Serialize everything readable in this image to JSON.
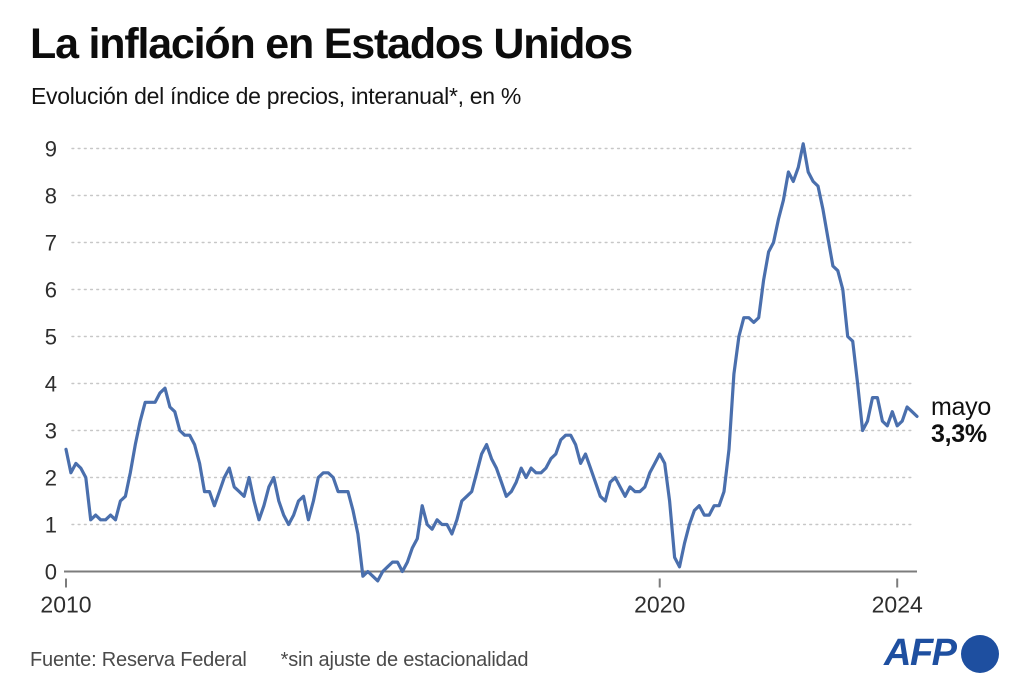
{
  "header": {
    "title": "La inflación en Estados Unidos",
    "subtitle": "Evolución del índice de precios, interanual*, en %"
  },
  "footer": {
    "source": "Fuente: Reserva Federal",
    "note": "*sin ajuste de estacionalidad"
  },
  "logo": {
    "text": "AFP"
  },
  "chart_data": {
    "type": "line",
    "title": "La inflación en Estados Unidos",
    "subtitle": "Evolución del índice de precios, interanual*, en %",
    "unit": "%",
    "x_range": {
      "start": "2010-01",
      "end": "2024-05"
    },
    "x_ticks": [
      "2010",
      "2020",
      "2024"
    ],
    "y_ticks": [
      0,
      1,
      2,
      3,
      4,
      5,
      6,
      7,
      8,
      9
    ],
    "ylim": [
      -0.3,
      9.4
    ],
    "grid": "dotted-horizontal",
    "line_color": "#4a6fad",
    "annotation": {
      "label": "mayo",
      "value": "3,3%"
    },
    "series": [
      {
        "name": "Índice de precios, variación interanual (%)",
        "frequency": "monthly",
        "values_by_year": {
          "2010": [
            2.6,
            2.1,
            2.3,
            2.2,
            2.0,
            1.1,
            1.2,
            1.1,
            1.1,
            1.2,
            1.1,
            1.5
          ],
          "2011": [
            1.6,
            2.1,
            2.7,
            3.2,
            3.6,
            3.6,
            3.6,
            3.8,
            3.9,
            3.5,
            3.4,
            3.0
          ],
          "2012": [
            2.9,
            2.9,
            2.7,
            2.3,
            1.7,
            1.7,
            1.4,
            1.7,
            2.0,
            2.2,
            1.8,
            1.7
          ],
          "2013": [
            1.6,
            2.0,
            1.5,
            1.1,
            1.4,
            1.8,
            2.0,
            1.5,
            1.2,
            1.0,
            1.2,
            1.5
          ],
          "2014": [
            1.6,
            1.1,
            1.5,
            2.0,
            2.1,
            2.1,
            2.0,
            1.7,
            1.7,
            1.7,
            1.3,
            0.8
          ],
          "2015": [
            -0.1,
            0.0,
            -0.1,
            -0.2,
            0.0,
            0.1,
            0.2,
            0.2,
            0.0,
            0.2,
            0.5,
            0.7
          ],
          "2016": [
            1.4,
            1.0,
            0.9,
            1.1,
            1.0,
            1.0,
            0.8,
            1.1,
            1.5,
            1.6,
            1.7,
            2.1
          ],
          "2017": [
            2.5,
            2.7,
            2.4,
            2.2,
            1.9,
            1.6,
            1.7,
            1.9,
            2.2,
            2.0,
            2.2,
            2.1
          ],
          "2018": [
            2.1,
            2.2,
            2.4,
            2.5,
            2.8,
            2.9,
            2.9,
            2.7,
            2.3,
            2.5,
            2.2,
            1.9
          ],
          "2019": [
            1.6,
            1.5,
            1.9,
            2.0,
            1.8,
            1.6,
            1.8,
            1.7,
            1.7,
            1.8,
            2.1,
            2.3
          ],
          "2020": [
            2.5,
            2.3,
            1.5,
            0.3,
            0.1,
            0.6,
            1.0,
            1.3,
            1.4,
            1.2,
            1.2,
            1.4
          ],
          "2021": [
            1.4,
            1.7,
            2.6,
            4.2,
            5.0,
            5.4,
            5.4,
            5.3,
            5.4,
            6.2,
            6.8,
            7.0
          ],
          "2022": [
            7.5,
            7.9,
            8.5,
            8.3,
            8.6,
            9.1,
            8.5,
            8.3,
            8.2,
            7.7,
            7.1,
            6.5
          ],
          "2023": [
            6.4,
            6.0,
            5.0,
            4.9,
            4.0,
            3.0,
            3.2,
            3.7,
            3.7,
            3.2,
            3.1,
            3.4
          ],
          "2024": [
            3.1,
            3.2,
            3.5,
            3.4,
            3.3
          ]
        }
      }
    ]
  }
}
